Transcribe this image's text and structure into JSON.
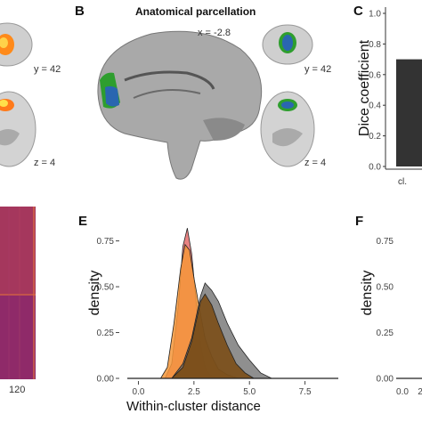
{
  "panels": {
    "A": {
      "labels": {
        "coronal": "y = 42",
        "axial": "z = 4"
      },
      "heatmap_tick": "120"
    },
    "B": {
      "letter": "B",
      "title": "Anatomical parcellation",
      "sagittal_label": "x = -2.8",
      "coronal_label": "y = 42",
      "axial_label": "z = 4"
    },
    "C": {
      "letter": "C",
      "ylabel": "Dice coefficient",
      "yticks": [
        "1.0",
        "0.8",
        "0.6",
        "0.4",
        "0.2",
        "0.0"
      ],
      "xtick": "cl."
    },
    "E": {
      "letter": "E",
      "ylabel": "density",
      "xlabel": "Within-cluster distance",
      "yticks": [
        "0.75",
        "0.50",
        "0.25",
        "0.00"
      ],
      "xticks": [
        "0.0",
        "2.5",
        "5.0",
        "7.5"
      ]
    },
    "F": {
      "letter": "F",
      "ylabel": "density",
      "yticks": [
        "0.75",
        "0.50",
        "0.25",
        "0.00"
      ],
      "xticks": [
        "0.0",
        "2"
      ]
    }
  },
  "colors": {
    "green_region": "#2e9e2e",
    "blue_region": "#2a66b0",
    "orange_region": "#ff9a1a",
    "bar": "#333333",
    "density_orange": "#f5963a",
    "density_red": "#e05a5a",
    "density_gray": "#6a6a6a",
    "density_brown": "#7a4a10"
  },
  "chart_data": [
    {
      "type": "bar",
      "panel": "C",
      "ylabel": "Dice coefficient",
      "ylim": [
        0,
        1.0
      ],
      "categories": [
        "cl."
      ],
      "values": [
        0.7
      ]
    },
    {
      "type": "area",
      "panel": "E",
      "xlabel": "Within-cluster distance",
      "ylabel": "density",
      "xlim": [
        -0.5,
        9
      ],
      "ylim": [
        0,
        0.85
      ],
      "series": [
        {
          "color": "#e05a5a",
          "x": [
            1.2,
            1.5,
            1.8,
            2.0,
            2.2,
            2.4,
            2.6,
            2.8,
            3.0,
            3.2,
            3.5,
            4.0
          ],
          "y": [
            0.0,
            0.08,
            0.4,
            0.72,
            0.82,
            0.68,
            0.42,
            0.18,
            0.06,
            0.02,
            0.0,
            0.0
          ]
        },
        {
          "color": "#f5963a",
          "x": [
            1.0,
            1.3,
            1.6,
            1.9,
            2.1,
            2.3,
            2.5,
            2.8,
            3.0,
            3.3,
            3.6,
            4.0,
            4.5
          ],
          "y": [
            0.0,
            0.06,
            0.3,
            0.6,
            0.73,
            0.7,
            0.55,
            0.35,
            0.22,
            0.12,
            0.05,
            0.02,
            0.0
          ]
        },
        {
          "color": "#6a6a6a",
          "x": [
            1.5,
            2.0,
            2.4,
            2.8,
            3.0,
            3.3,
            3.6,
            4.0,
            4.5,
            5.0,
            5.5,
            6.0
          ],
          "y": [
            0.0,
            0.08,
            0.22,
            0.45,
            0.52,
            0.48,
            0.42,
            0.3,
            0.18,
            0.1,
            0.03,
            0.0
          ]
        },
        {
          "color": "#7a4a10",
          "x": [
            1.5,
            2.0,
            2.4,
            2.8,
            3.0,
            3.3,
            3.6,
            4.0,
            4.4,
            4.8,
            5.2
          ],
          "y": [
            0.0,
            0.06,
            0.2,
            0.42,
            0.46,
            0.4,
            0.3,
            0.18,
            0.08,
            0.03,
            0.0
          ]
        }
      ]
    }
  ]
}
